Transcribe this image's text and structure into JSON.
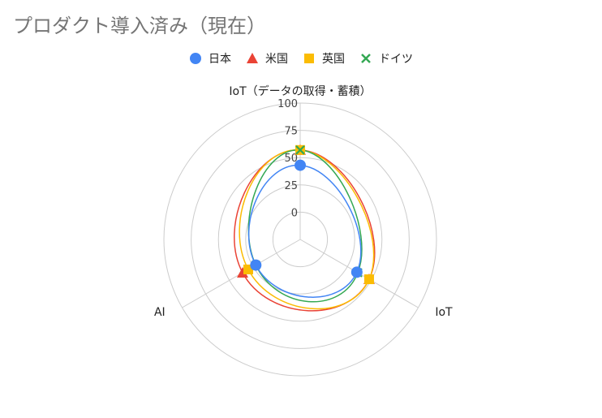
{
  "chart_data": {
    "type": "radar",
    "title": "プロダクト導入済み（現在）",
    "axes": [
      "IoT（データの取得・蓄積）",
      "IoT",
      "AI"
    ],
    "r_ticks": [
      "0",
      "25",
      "50",
      "75",
      "100"
    ],
    "rlim": [
      -25,
      100
    ],
    "grid": true,
    "legend_position": "top",
    "series": [
      {
        "name": "日本",
        "marker": "circle",
        "color": "#4285f4",
        "values": [
          43,
          35,
          22
        ]
      },
      {
        "name": "米国",
        "marker": "triangle",
        "color": "#ea4335",
        "values": [
          57,
          48,
          36
        ]
      },
      {
        "name": "英国",
        "marker": "square",
        "color": "#fbbc04",
        "values": [
          57,
          48,
          30
        ]
      },
      {
        "name": "ドイツ",
        "marker": "x",
        "color": "#34a853",
        "values": [
          57,
          36,
          22
        ]
      }
    ]
  }
}
